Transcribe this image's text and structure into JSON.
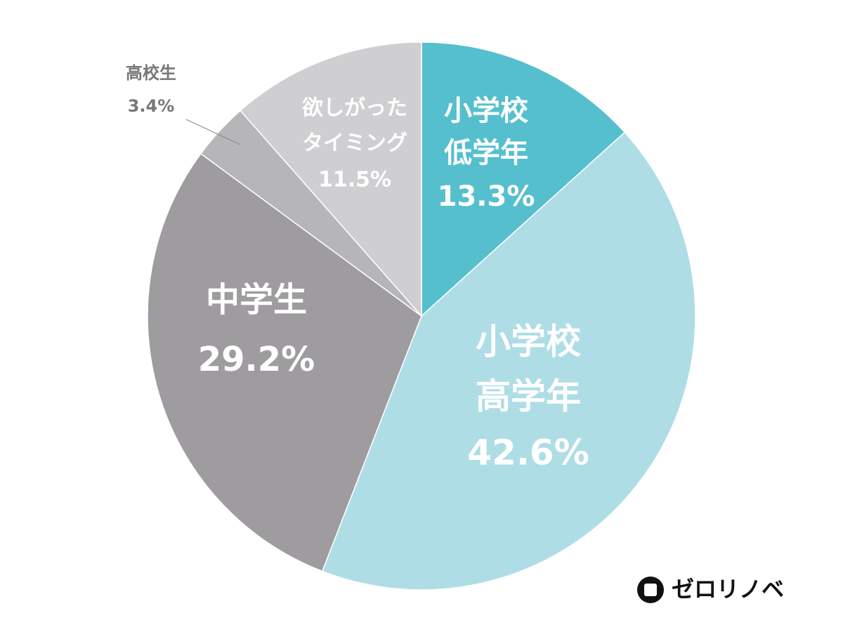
{
  "chart_data": {
    "type": "pie",
    "categories": [
      [
        "小学校",
        "低学年"
      ],
      [
        "小学校",
        "高学年"
      ],
      [
        "中学生"
      ],
      [
        "高校生"
      ],
      [
        "欲しがった",
        "タイミング"
      ]
    ],
    "values": [
      13.3,
      42.6,
      29.2,
      3.4,
      11.5
    ],
    "value_labels": [
      "13.3%",
      "42.6%",
      "29.2%",
      "3.4%",
      "11.5%"
    ],
    "colors": [
      "#56bfce",
      "#aedde6",
      "#9e9c9f",
      "#b6b5b8",
      "#cfced1"
    ]
  },
  "logo": "ゼロリノベ"
}
